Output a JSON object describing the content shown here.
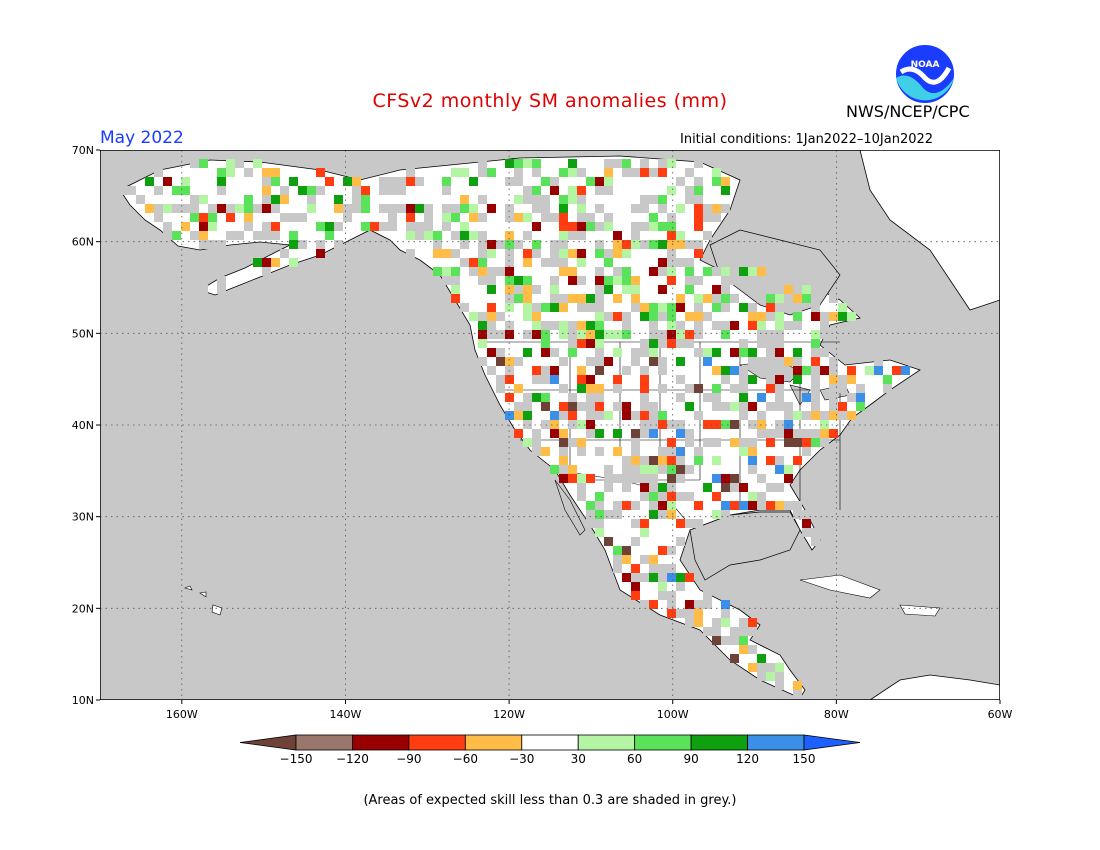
{
  "header": {
    "title": "CFSv2 monthly SM anomalies (mm)",
    "month": "May 2022",
    "agency": "NWS/NCEP/CPC",
    "initial_conditions": "Initial conditions: 1Jan2022–10Jan2022",
    "logo_text": "NOAA"
  },
  "map": {
    "lon_range": [
      -170,
      -60
    ],
    "lat_range": [
      10,
      70
    ],
    "lat_ticks": [
      {
        "value": 70,
        "label": "70N"
      },
      {
        "value": 60,
        "label": "60N"
      },
      {
        "value": 50,
        "label": "50N"
      },
      {
        "value": 40,
        "label": "40N"
      },
      {
        "value": 30,
        "label": "30N"
      },
      {
        "value": 20,
        "label": "20N"
      },
      {
        "value": 10,
        "label": "10N"
      }
    ],
    "lon_ticks": [
      {
        "value": -160,
        "label": "160W"
      },
      {
        "value": -140,
        "label": "140W"
      },
      {
        "value": -120,
        "label": "120W"
      },
      {
        "value": -100,
        "label": "100W"
      },
      {
        "value": -80,
        "label": "80W"
      },
      {
        "value": -60,
        "label": "60W"
      }
    ],
    "ocean_color": "#c8c8c8",
    "land_color": "#ffffff"
  },
  "legend": {
    "bins": [
      {
        "label": "-150",
        "color": "#6e4236"
      },
      {
        "label": "-120",
        "color": "#9a776c"
      },
      {
        "label": "-90",
        "color": "#980000"
      },
      {
        "label": "-60",
        "color": "#ff3d10"
      },
      {
        "label": "-30",
        "color": "#ffbc46"
      },
      {
        "label": "30",
        "color": "#ffffff"
      },
      {
        "label": "60",
        "color": "#b4f5a4"
      },
      {
        "label": "90",
        "color": "#5ae35a"
      },
      {
        "label": "120",
        "color": "#0fa00f"
      },
      {
        "label": "150",
        "color": "#3c8fe8"
      },
      {
        "label": "",
        "color": "#1e5fff"
      }
    ],
    "tick_labels": [
      "−150",
      "−120",
      "−90",
      "−60",
      "−30",
      "30",
      "60",
      "90",
      "120",
      "150"
    ]
  },
  "footnote": "(Areas of expected skill less than 0.3 are shaded in grey.)"
}
